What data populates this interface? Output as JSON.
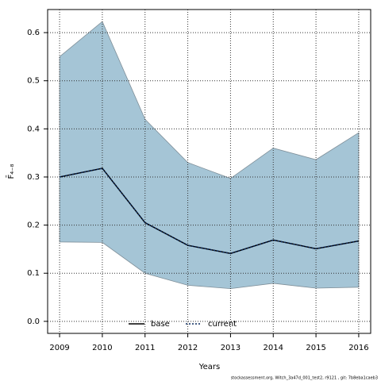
{
  "chart_data": {
    "type": "line",
    "xlabel": "Years",
    "ylabel": "F̄₄₋₈",
    "footnote": "stockassessment.org, Witch_3a47d_001_test2, r9121 , git: 7b8eba1caeb3",
    "x": [
      2009,
      2010,
      2011,
      2012,
      2013,
      2014,
      2015,
      2016
    ],
    "series": [
      {
        "name": "base",
        "color": "#000000",
        "dash": "solid",
        "values": [
          0.3,
          0.318,
          0.205,
          0.158,
          0.141,
          0.169,
          0.151,
          0.167
        ]
      },
      {
        "name": "current",
        "color": "#0a2a5e",
        "dash": "dotted",
        "values": [
          0.3,
          0.318,
          0.205,
          0.158,
          0.141,
          0.169,
          0.151,
          0.167
        ]
      }
    ],
    "band": {
      "color": "#a5c5d6",
      "upper": [
        0.55,
        0.623,
        0.42,
        0.33,
        0.297,
        0.36,
        0.336,
        0.392
      ],
      "lower": [
        0.165,
        0.164,
        0.1,
        0.075,
        0.068,
        0.079,
        0.069,
        0.071
      ]
    },
    "xlim": [
      2008.72,
      2016.28
    ],
    "xticks": [
      2009,
      2010,
      2011,
      2012,
      2013,
      2014,
      2015,
      2016
    ],
    "ylim": [
      -0.025,
      0.648
    ],
    "yticks": [
      {
        "value": 0,
        "label": "0.0"
      },
      0.1,
      0.2,
      0.3,
      0.4,
      0.5,
      0.6
    ],
    "grid": true,
    "legend": "bottom"
  }
}
